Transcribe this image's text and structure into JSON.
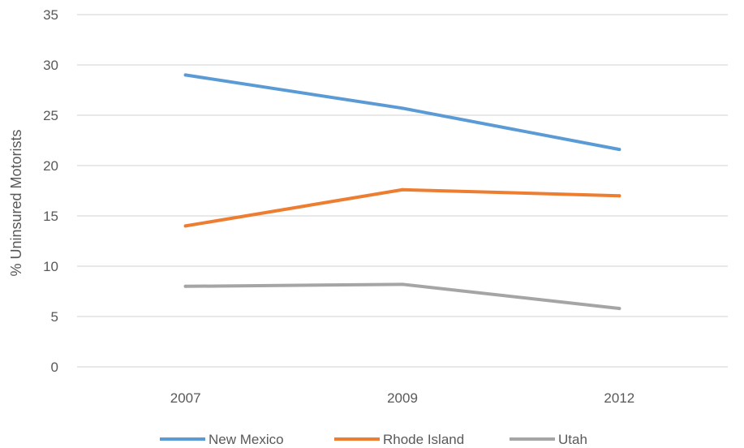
{
  "chart_data": {
    "type": "line",
    "title": "",
    "xlabel": "",
    "ylabel": "% Uninsured Motorists",
    "categories": [
      "2007",
      "2009",
      "2012"
    ],
    "ylim": [
      0,
      35
    ],
    "yticks": [
      0,
      5,
      10,
      15,
      20,
      25,
      30,
      35
    ],
    "grid": true,
    "legend_position": "bottom",
    "series": [
      {
        "name": "New Mexico",
        "color": "#5b9bd5",
        "values": [
          29.0,
          25.7,
          21.6
        ]
      },
      {
        "name": "Rhode Island",
        "color": "#ed7d31",
        "values": [
          14.0,
          17.6,
          17.0
        ]
      },
      {
        "name": "Utah",
        "color": "#a5a5a5",
        "values": [
          8.0,
          8.2,
          5.8
        ]
      }
    ]
  }
}
